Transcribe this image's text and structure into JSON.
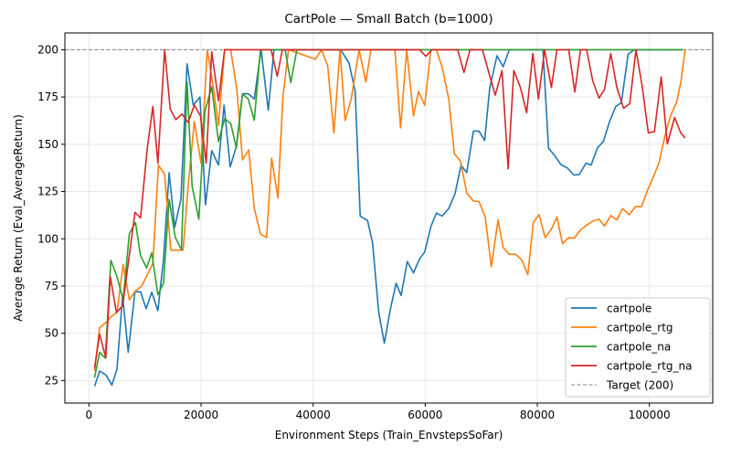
{
  "chart_data": {
    "type": "line",
    "title": "CartPole — Small Batch (b=1000)",
    "xlabel": "Environment Steps (Train_EnvstepsSoFar)",
    "ylabel": "Average Return (Eval_AverageReturn)",
    "xlim": [
      -4300,
      111300
    ],
    "ylim": [
      13.1,
      208.9
    ],
    "xticks": [
      0,
      20000,
      40000,
      60000,
      80000,
      100000
    ],
    "yticks": [
      25,
      50,
      75,
      100,
      125,
      150,
      175,
      200
    ],
    "grid": true,
    "legend_position": "bottom-right",
    "reference_line": {
      "name": "Target (200)",
      "y": 200,
      "color": "#808080",
      "style": "dashed"
    },
    "series": [
      {
        "name": "cartpole",
        "color": "#1f77b4",
        "x": [
          1000,
          1900,
          3000,
          4100,
          5000,
          6000,
          7000,
          8200,
          9200,
          10200,
          11200,
          12300,
          13300,
          14300,
          15300,
          16400,
          17500,
          18600,
          19800,
          20800,
          21900,
          23100,
          24100,
          25200,
          26300,
          27400,
          28400,
          29500,
          30700,
          32000,
          33000,
          44900,
          46400,
          47500,
          48400,
          49700,
          50600,
          51700,
          52700,
          53800,
          54800,
          55700,
          56800,
          57900,
          59000,
          59900,
          61000,
          62000,
          63000,
          64200,
          65300,
          66400,
          67400,
          68600,
          69600,
          70600,
          71500,
          72800,
          73900,
          75000,
          81000,
          82000,
          83100,
          84200,
          85400,
          86500,
          87500,
          88700,
          89600,
          90700,
          91800,
          92900,
          94000,
          95000,
          96200,
          97300,
          105600
        ],
        "y": [
          22,
          30,
          28,
          22.6,
          31,
          70,
          40,
          72,
          72,
          63,
          71.7,
          62,
          89,
          135,
          106,
          121,
          192.5,
          170.7,
          175,
          118,
          146.6,
          139,
          170.7,
          138,
          149,
          176.7,
          176.7,
          174,
          200,
          168,
          200,
          200,
          193,
          178,
          112,
          109.7,
          98,
          61,
          44.8,
          63,
          76.5,
          70,
          88,
          82,
          89.4,
          93,
          106.4,
          113.6,
          112,
          116,
          123.7,
          139,
          135,
          157,
          157,
          152,
          179.6,
          196.8,
          191,
          200,
          200,
          148,
          144,
          139.3,
          137.4,
          133.7,
          134,
          140,
          139,
          148,
          151.5,
          162,
          170,
          172,
          197.6,
          200,
          200
        ]
      },
      {
        "name": "cartpole_rtg",
        "color": "#ff7f0e",
        "x": [
          1000,
          1900,
          3000,
          4000,
          5000,
          6100,
          7200,
          8300,
          9400,
          10400,
          11400,
          12400,
          13500,
          14600,
          15700,
          16800,
          17700,
          18800,
          20000,
          21100,
          22100,
          23100,
          24200,
          25300,
          26400,
          27400,
          28500,
          29500,
          30600,
          31700,
          32600,
          33700,
          34600,
          35600,
          40400,
          41500,
          42600,
          43700,
          44800,
          45700,
          46800,
          48200,
          49400,
          50300,
          54600,
          55600,
          56700,
          57900,
          58800,
          59900,
          61000,
          62000,
          63000,
          64200,
          65200,
          66300,
          67400,
          68600,
          69600,
          70700,
          71800,
          73000,
          73900,
          75000,
          76100,
          77200,
          78300,
          79300,
          80300,
          81400,
          82500,
          83500,
          84500,
          85600,
          86600,
          87700,
          88900,
          90000,
          91000,
          92000,
          93100,
          94200,
          95200,
          96400,
          97500,
          98600,
          99700,
          100600,
          101700,
          102800,
          103800,
          104900,
          105600,
          106400
        ],
        "y": [
          30,
          53,
          55.6,
          59,
          61,
          86.5,
          67.7,
          72.5,
          75,
          81,
          87,
          139,
          134,
          94,
          94,
          94,
          128,
          162,
          140,
          200,
          182,
          160,
          200,
          200,
          178.7,
          141.7,
          147,
          116,
          102.6,
          100.7,
          142.6,
          121.6,
          175,
          200,
          195,
          200,
          191.6,
          156,
          200,
          162.6,
          174,
          200,
          183,
          200,
          200,
          158.6,
          200,
          165,
          178,
          170.6,
          200,
          200,
          191,
          174,
          145,
          141,
          124.2,
          120,
          119.7,
          111.6,
          85.3,
          110,
          95.5,
          91.8,
          91.8,
          89,
          81,
          108.7,
          112.8,
          100.7,
          105,
          111.6,
          97.4,
          100.6,
          100.3,
          104.7,
          107.4,
          109.5,
          110.3,
          106.8,
          112.3,
          110,
          116,
          112.8,
          117,
          117,
          126,
          132,
          140,
          154.8,
          165.3,
          172.5,
          182.5,
          200
        ]
      },
      {
        "name": "cartpole_na",
        "color": "#2ca02c",
        "x": [
          1000,
          1900,
          2900,
          3900,
          5000,
          6100,
          7200,
          8300,
          9200,
          10300,
          11200,
          12300,
          13300,
          14300,
          15400,
          16500,
          17500,
          18400,
          19600,
          20700,
          21900,
          23100,
          24200,
          25300,
          26300,
          27400,
          28400,
          29500,
          30600,
          35000,
          36000,
          37100,
          106000
        ],
        "y": [
          26.6,
          40,
          37,
          88.6,
          80,
          67.7,
          102.6,
          108.7,
          91,
          84.6,
          92.6,
          70.4,
          76.5,
          120.8,
          100.7,
          94.2,
          183,
          128,
          110.3,
          167.5,
          180.4,
          151.4,
          163.5,
          161,
          148,
          176.7,
          174,
          162.7,
          200,
          200,
          182.6,
          200,
          200
        ]
      },
      {
        "name": "cartpole_rtg_na",
        "color": "#d62728",
        "x": [
          1000,
          1900,
          3000,
          3800,
          4900,
          6000,
          6900,
          8200,
          9200,
          10400,
          11400,
          12300,
          13500,
          14500,
          15500,
          16600,
          17700,
          18800,
          19900,
          20900,
          21900,
          23100,
          24200,
          32500,
          33600,
          34500,
          59000,
          60100,
          61200,
          65800,
          66900,
          68000,
          70200,
          72500,
          73700,
          74800,
          75800,
          77000,
          78100,
          79200,
          80200,
          81300,
          82500,
          83500,
          85600,
          86700,
          87700,
          88800,
          89900,
          91000,
          92000,
          93100,
          94200,
          95400,
          96500,
          97600,
          98700,
          99800,
          100900,
          102100,
          103200,
          104500,
          105600,
          106400
        ],
        "y": [
          31.8,
          49.5,
          37,
          80,
          61,
          64.5,
          84.6,
          114,
          111,
          148,
          170,
          140,
          200,
          168.6,
          163,
          166,
          161.5,
          170.7,
          165,
          140,
          199,
          173,
          200,
          200,
          186,
          200,
          200,
          196.5,
          200,
          200,
          188,
          200,
          200,
          176,
          189,
          137,
          189,
          180,
          166.7,
          198,
          174,
          200,
          180,
          200,
          200,
          177.6,
          200,
          200,
          183.5,
          174.4,
          179,
          198,
          180,
          169,
          171.5,
          200,
          181,
          156,
          156.7,
          185.6,
          150.2,
          164.2,
          156,
          153.3
        ]
      }
    ]
  }
}
